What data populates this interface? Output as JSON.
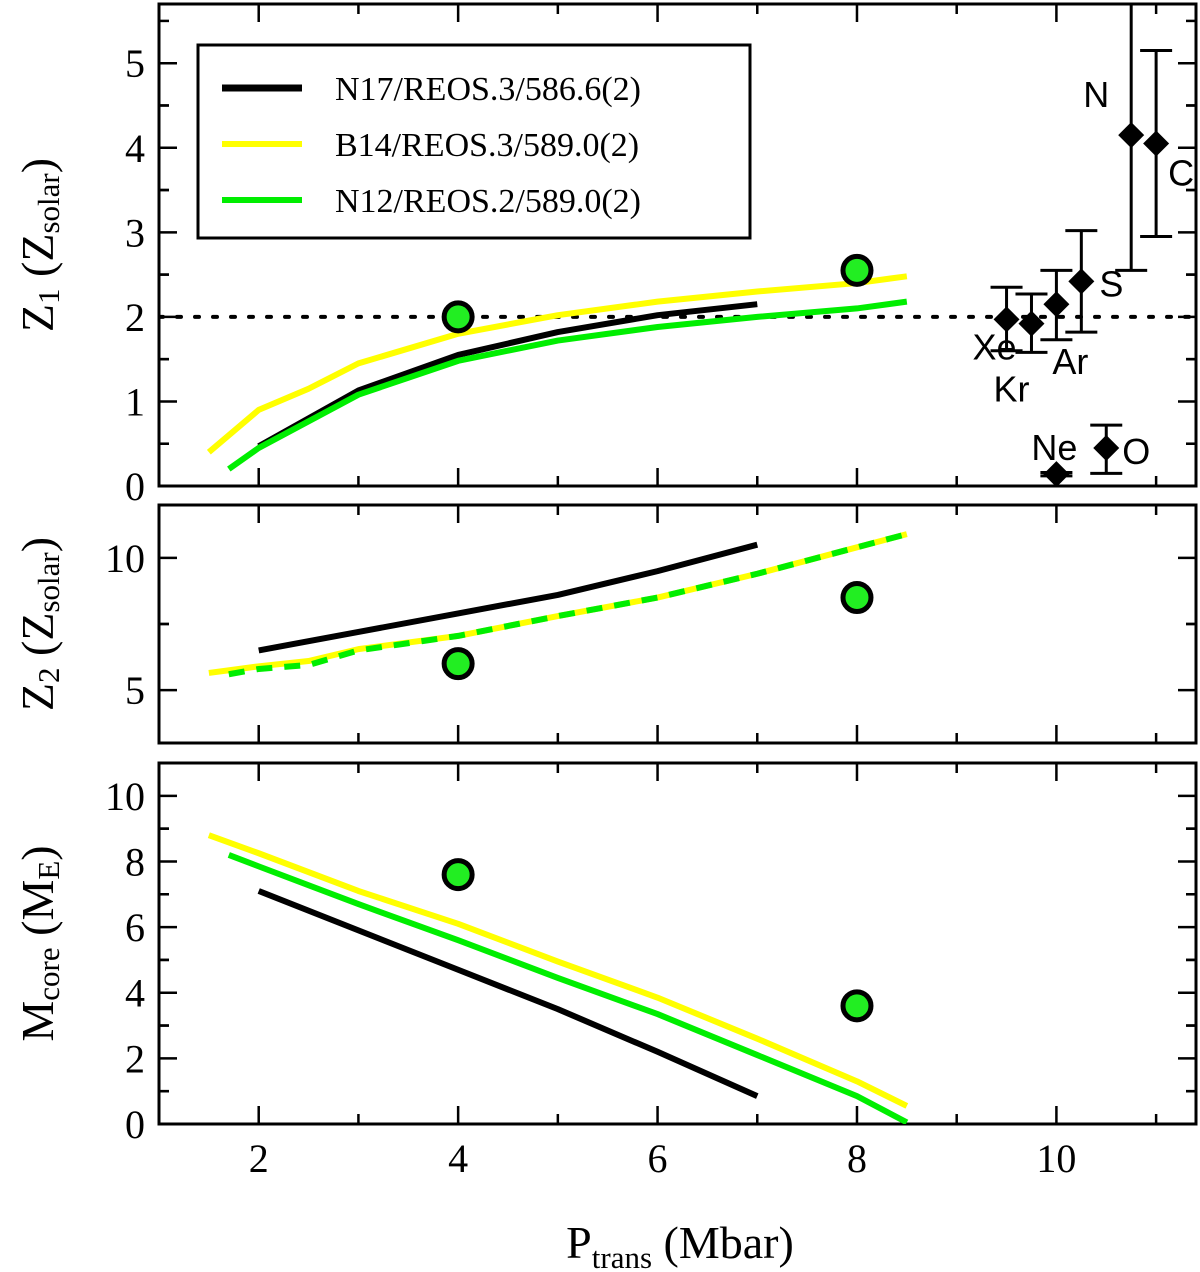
{
  "chart_data": {
    "type": "line",
    "xlabel": {
      "main": "P",
      "sub": "trans",
      "rest": " (Mbar)"
    },
    "xlim": [
      1,
      11.4
    ],
    "x_ticks": [
      2,
      4,
      6,
      8,
      10
    ],
    "series_meta": [
      {
        "name": "N17/REOS.3/586.6(2)",
        "color": "#000000"
      },
      {
        "name": "B14/REOS.3/589.0(2)",
        "color": "#ffff00"
      },
      {
        "name": "N12/REOS.2/589.0(2)",
        "color": "#00ee00"
      }
    ],
    "marker_color": "#22ee22",
    "panels": [
      {
        "id": "z1",
        "ylabel": {
          "main": "Z",
          "sub": "1",
          "open": " (Z",
          "sub2": "solar",
          "close": ")"
        },
        "ylim": [
          0,
          5.7
        ],
        "y_ticks": [
          0,
          1,
          2,
          3,
          4,
          5
        ],
        "reference_line": 2,
        "series": [
          {
            "name": "N17/REOS.3/586.6(2)",
            "x": [
              2,
              3,
              4,
              5,
              6,
              7
            ],
            "y": [
              0.47,
              1.13,
              1.55,
              1.82,
              2.02,
              2.15
            ]
          },
          {
            "name": "B14/REOS.3/589.0(2)",
            "x": [
              1.5,
              2,
              2.5,
              3,
              4,
              5,
              6,
              7,
              8,
              8.5
            ],
            "y": [
              0.4,
              0.9,
              1.15,
              1.45,
              1.8,
              2.02,
              2.18,
              2.3,
              2.4,
              2.48
            ]
          },
          {
            "name": "N12/REOS.2/589.0(2)",
            "x": [
              1.7,
              2,
              3,
              4,
              5,
              6,
              7,
              8,
              8.5
            ],
            "y": [
              0.2,
              0.45,
              1.08,
              1.48,
              1.72,
              1.88,
              2.0,
              2.1,
              2.18
            ]
          }
        ],
        "markers": [
          {
            "x": 4,
            "y": 2.0
          },
          {
            "x": 8,
            "y": 2.55
          }
        ],
        "abundances": [
          {
            "label": "Xe",
            "x": 9.5,
            "y": 1.97,
            "yerr_low": 1.6,
            "yerr_high": 2.35
          },
          {
            "label": "Kr",
            "x": 9.75,
            "y": 1.92,
            "yerr_low": 1.58,
            "yerr_high": 2.27
          },
          {
            "label": "Ar",
            "x": 10.0,
            "y": 2.15,
            "yerr_low": 1.73,
            "yerr_high": 2.55
          },
          {
            "label": "S",
            "x": 10.25,
            "y": 2.42,
            "yerr_low": 1.82,
            "yerr_high": 3.02
          },
          {
            "label": "N",
            "x": 10.75,
            "y": 4.15,
            "yerr_low": 2.55,
            "yerr_high": 5.72
          },
          {
            "label": "C",
            "x": 11.0,
            "y": 4.05,
            "yerr_low": 2.95,
            "yerr_high": 5.15
          },
          {
            "label": "Ne",
            "x": 10.0,
            "y": 0.14,
            "yerr_low": 0.12,
            "yerr_high": 0.16
          },
          {
            "label": "O",
            "x": 10.5,
            "y": 0.45,
            "yerr_low": 0.15,
            "yerr_high": 0.72
          }
        ]
      },
      {
        "id": "z2",
        "ylabel": {
          "main": "Z",
          "sub": "2",
          "open": " (Z",
          "sub2": "solar",
          "close": ")"
        },
        "ylim": [
          3,
          12
        ],
        "y_ticks": [
          5,
          10
        ],
        "series": [
          {
            "name": "N17/REOS.3/586.6(2)",
            "x": [
              2,
              3,
              4,
              5,
              6,
              7
            ],
            "y": [
              6.5,
              7.2,
              7.9,
              8.6,
              9.5,
              10.5
            ]
          },
          {
            "name": "B14/REOS.3/589.0(2)",
            "x": [
              1.5,
              2,
              2.5,
              3,
              4,
              5,
              6,
              7,
              8,
              8.5
            ],
            "y": [
              5.65,
              5.9,
              6.1,
              6.55,
              7.05,
              7.8,
              8.5,
              9.4,
              10.4,
              10.9
            ]
          },
          {
            "name": "N12/REOS.2/589.0(2)",
            "x": [
              1.7,
              2,
              2.5,
              3,
              4,
              5,
              6,
              7,
              8,
              8.5
            ],
            "y": [
              5.6,
              5.8,
              5.95,
              6.5,
              7.05,
              7.8,
              8.5,
              9.4,
              10.4,
              10.9
            ]
          }
        ],
        "markers": [
          {
            "x": 4,
            "y": 6.0
          },
          {
            "x": 8,
            "y": 8.5
          }
        ]
      },
      {
        "id": "mcore",
        "ylabel": {
          "main": "M",
          "sub": "core",
          "open": " (M",
          "sub2": "E",
          "close": ")"
        },
        "ylim": [
          0,
          11
        ],
        "y_ticks": [
          0,
          2,
          4,
          6,
          8,
          10
        ],
        "series": [
          {
            "name": "N17/REOS.3/586.6(2)",
            "x": [
              2,
              3,
              4,
              5,
              6,
              7
            ],
            "y": [
              7.1,
              5.9,
              4.7,
              3.5,
              2.2,
              0.85
            ]
          },
          {
            "name": "B14/REOS.3/589.0(2)",
            "x": [
              1.5,
              2,
              3,
              4,
              5,
              6,
              7,
              8,
              8.5
            ],
            "y": [
              8.8,
              8.25,
              7.1,
              6.1,
              4.95,
              3.85,
              2.6,
              1.3,
              0.55
            ]
          },
          {
            "name": "N12/REOS.2/589.0(2)",
            "x": [
              1.7,
              2,
              3,
              4,
              5,
              6,
              7,
              8,
              8.5
            ],
            "y": [
              8.2,
              7.85,
              6.7,
              5.6,
              4.45,
              3.35,
              2.1,
              0.85,
              0.05
            ]
          }
        ],
        "markers": [
          {
            "x": 4,
            "y": 7.6
          },
          {
            "x": 8,
            "y": 3.6
          }
        ]
      }
    ]
  }
}
